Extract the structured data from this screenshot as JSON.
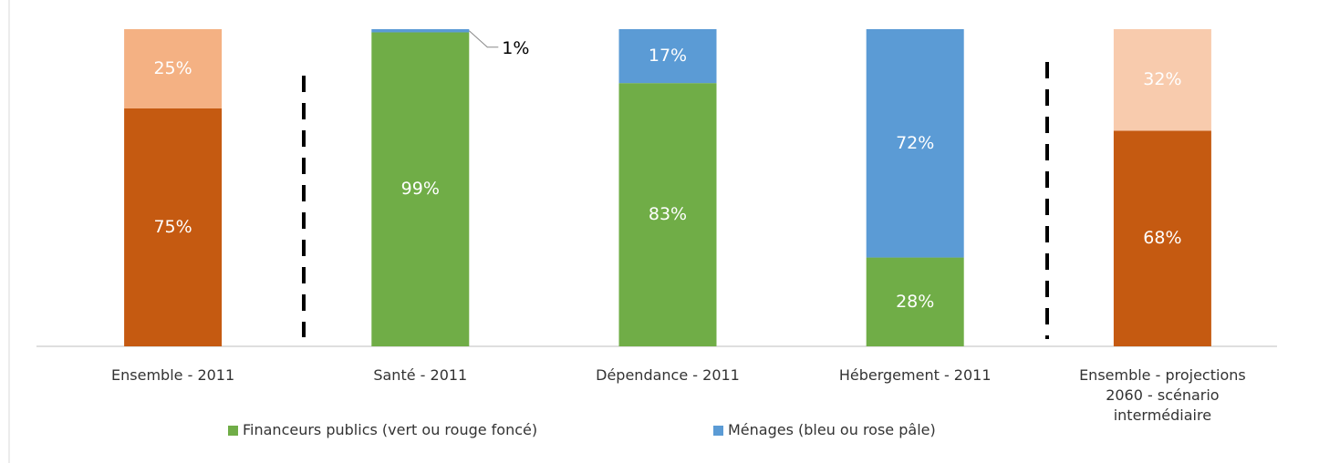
{
  "chart_data": {
    "type": "stacked_bar",
    "categories": [
      "Ensemble - 2011",
      "Santé - 2011",
      "Dépendance - 2011",
      "Hébergement - 2011",
      "Ensemble - projections 2060 -  scénario intermédiaire"
    ],
    "series": [
      {
        "name": "Financeurs publics (vert ou rouge foncé)",
        "color": "#70ad47",
        "colors": [
          "#c55a11",
          "#70ad47",
          "#70ad47",
          "#70ad47",
          "#c55a11"
        ],
        "values": [
          75,
          99,
          83,
          28,
          68
        ],
        "value_labels": [
          "75%",
          "99%",
          "83%",
          "28%",
          "68%"
        ]
      },
      {
        "name": "Ménages (bleu ou rose pâle)",
        "color": "#5b9bd5",
        "colors": [
          "#f4b183",
          "#5b9bd5",
          "#5b9bd5",
          "#5b9bd5",
          "#f8cbad"
        ],
        "values": [
          25,
          1,
          17,
          72,
          32
        ],
        "value_labels": [
          "25%",
          "1%",
          "17%",
          "72%",
          "32%"
        ]
      }
    ],
    "ylim": [
      0,
      100
    ],
    "legend": "bottom"
  }
}
